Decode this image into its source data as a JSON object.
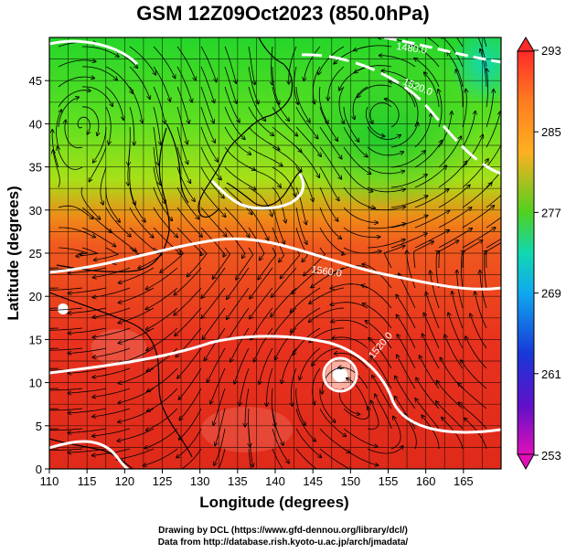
{
  "title": "GSM 12Z09Oct2023 (850.0hPa)",
  "xaxis": {
    "label": "Longitude (degrees)",
    "ticks": [
      110,
      115,
      120,
      125,
      130,
      135,
      140,
      145,
      150,
      155,
      160,
      165
    ],
    "range": [
      110,
      170
    ]
  },
  "yaxis": {
    "label": "Latitude  (degrees)",
    "ticks": [
      0,
      5,
      10,
      15,
      20,
      25,
      30,
      35,
      40,
      45
    ],
    "range": [
      0,
      50
    ]
  },
  "colorbar": {
    "labels": [
      "293",
      "285",
      "277",
      "269",
      "261",
      "253"
    ],
    "min": 253,
    "max": 293
  },
  "contour_labels": [
    "1480.0",
    "1520.0",
    "1560.0",
    "1520.0"
  ],
  "credits": {
    "line1": "Drawing by DCL (https://www.gfd-dennou.org/library/dcl/)",
    "line2": "Data from http://database.rish.kyoto-u.ac.jp/arch/jmadata/"
  }
}
